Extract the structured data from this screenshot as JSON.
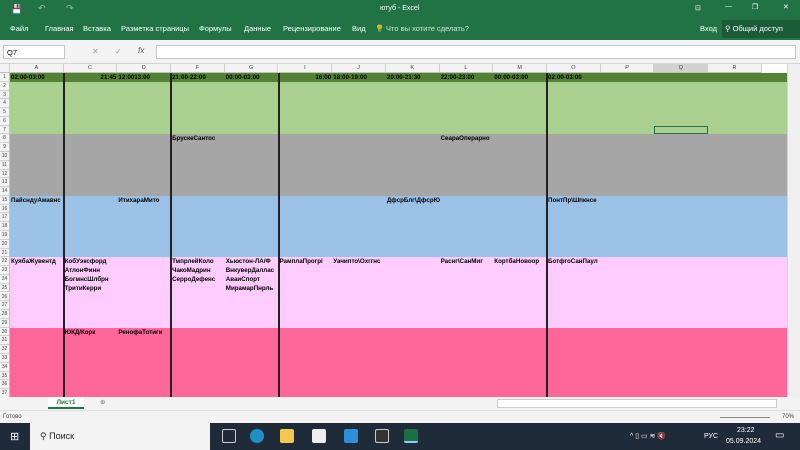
{
  "window": {
    "title": "ютуб - Excel"
  },
  "ribbon": {
    "tabs": [
      "Файл",
      "Главная",
      "Вставка",
      "Разметка страницы",
      "Формулы",
      "Данные",
      "Рецензирование",
      "Вид"
    ],
    "tell_me": "Что вы хотите сделать?",
    "signin": "Вход",
    "share": "Общий доступ"
  },
  "formula_bar": {
    "name_box": "Q7",
    "fx": "fx",
    "value": ""
  },
  "columns": [
    "A",
    "C",
    "D",
    "F",
    "G",
    "I",
    "J",
    "K",
    "L",
    "M",
    "O",
    "P",
    "Q",
    "R"
  ],
  "hidden_columns_between": [
    "A|C",
    "D|F",
    "G|I",
    "M|O"
  ],
  "row_count": 37,
  "bands": [
    {
      "rows": [
        2,
        7
      ],
      "color": "#a9d08e"
    },
    {
      "rows": [
        8,
        14
      ],
      "color": "#a6a6a6"
    },
    {
      "rows": [
        15,
        21
      ],
      "color": "#9bc2e6"
    },
    {
      "rows": [
        22,
        29
      ],
      "color": "#ffccff"
    },
    {
      "rows": [
        30,
        37
      ],
      "color": "#ff6699"
    }
  ],
  "header_row_color": "#548235",
  "cells": [
    {
      "r": 1,
      "c": "A",
      "t": "02:00-03:00"
    },
    {
      "r": 1,
      "c": "C",
      "t": "21:45",
      "align": "right"
    },
    {
      "r": 1,
      "c": "D",
      "t": "12:0013:00"
    },
    {
      "r": 1,
      "c": "F",
      "t": "21:00-22:00"
    },
    {
      "r": 1,
      "c": "G",
      "t": "00:00-03:00"
    },
    {
      "r": 1,
      "c": "I",
      "t": "16:00",
      "align": "right"
    },
    {
      "r": 1,
      "c": "J",
      "t": "18:00-19:00"
    },
    {
      "r": 1,
      "c": "K",
      "t": "20:00-21:30"
    },
    {
      "r": 1,
      "c": "L",
      "t": "22:00-23:00"
    },
    {
      "r": 1,
      "c": "M",
      "t": "00:00-03:00"
    },
    {
      "r": 1,
      "c": "O",
      "t": "02:00-03:00"
    },
    {
      "r": 8,
      "c": "F",
      "t": "БрускеСантос"
    },
    {
      "r": 8,
      "c": "L",
      "t": "СеараОперарно"
    },
    {
      "r": 15,
      "c": "A",
      "t": "ПайсндуАмавнс"
    },
    {
      "r": 15,
      "c": "D",
      "t": "ИтихараМито"
    },
    {
      "r": 15,
      "c": "K",
      "t": "ДфсрБлг\\ДфсрЮ"
    },
    {
      "r": 15,
      "c": "O",
      "t": "ПонтПр\\Шпкнсе"
    },
    {
      "r": 22,
      "c": "A",
      "t": "КуябаЖувентд"
    },
    {
      "r": 22,
      "c": "C",
      "t": "КобУэксфорд"
    },
    {
      "r": 22,
      "c": "F",
      "t": "ТмпрлейКоло"
    },
    {
      "r": 22,
      "c": "G",
      "t": "Хьюстон-ЛА/Ф"
    },
    {
      "r": 22,
      "c": "I",
      "t": "РамплаПрогрі"
    },
    {
      "r": 22,
      "c": "J",
      "t": "Уачипто\\Охггнс"
    },
    {
      "r": 22,
      "c": "L",
      "t": "Раснг\\СанМиг"
    },
    {
      "r": 22,
      "c": "M",
      "t": "КортбаНовоор"
    },
    {
      "r": 22,
      "c": "O",
      "t": "БотфгоСанПаул"
    },
    {
      "r": 23,
      "c": "C",
      "t": "АтлонФинн"
    },
    {
      "r": 23,
      "c": "F",
      "t": "ЧакоМадрин"
    },
    {
      "r": 23,
      "c": "G",
      "t": "ВнкуверДаллас"
    },
    {
      "r": 24,
      "c": "C",
      "t": "БогмнсШлбрн"
    },
    {
      "r": 24,
      "c": "F",
      "t": "СерроДефенс"
    },
    {
      "r": 24,
      "c": "G",
      "t": "АваиСпорт"
    },
    {
      "r": 25,
      "c": "C",
      "t": "ТритиКерри"
    },
    {
      "r": 25,
      "c": "G",
      "t": "МирамарПнрль"
    },
    {
      "r": 30,
      "c": "C",
      "t": "ЮКД/Корк"
    },
    {
      "r": 30,
      "c": "D",
      "t": "РенофаТотиги"
    }
  ],
  "selected_cell": {
    "r": 7,
    "c": "Q"
  },
  "sheet_tabs": [
    "Лист1"
  ],
  "status": {
    "ready": "Готово",
    "zoom": "70%"
  },
  "taskbar": {
    "search": "Поиск",
    "lang": "РУС",
    "time": "23:22",
    "date": "05.09.2024"
  }
}
